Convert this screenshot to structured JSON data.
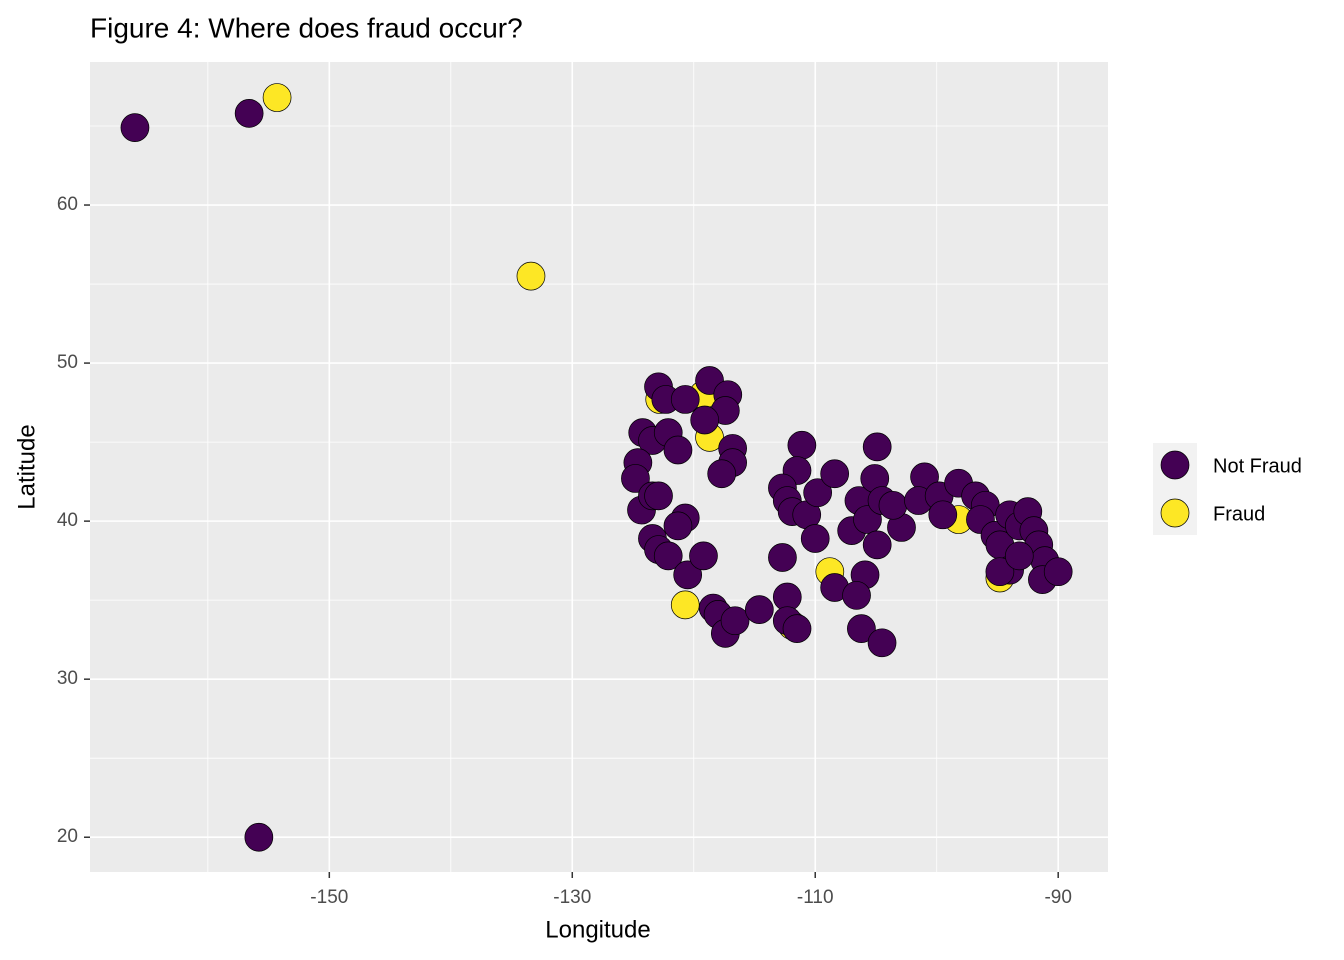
{
  "chart_data": {
    "type": "scatter",
    "title": "Figure 4: Where does fraud occur?",
    "x_label": "Longitude",
    "y_label": "Latitude",
    "xlim": [
      -169.7,
      -85.9
    ],
    "ylim": [
      17.8,
      69.05
    ],
    "xticks": [
      -150,
      -130,
      -110,
      -90
    ],
    "yticks": [
      20,
      30,
      40,
      50,
      60
    ],
    "x_minor_ticks": [
      -160,
      -140,
      -120,
      -100
    ],
    "y_minor_ticks": [
      25,
      35,
      45,
      55,
      65
    ],
    "grid": true,
    "series": [
      {
        "name": "Fraud",
        "color": "#fde725",
        "x": [
          -154.3,
          -133.4,
          -120.7,
          -108.8,
          -119.2,
          -122.8,
          -118.7,
          -98.2,
          -94.8,
          -111.9
        ],
        "y": [
          66.8,
          55.5,
          34.7,
          36.8,
          48.0,
          47.7,
          45.3,
          40.1,
          36.4,
          33.4
        ]
      },
      {
        "name": "Not Fraud",
        "color": "#440154",
        "x": [
          -166.0,
          -156.6,
          -155.8,
          -122.9,
          -122.3,
          -118.7,
          -117.2,
          -117.4,
          -120.7,
          -124.2,
          -123.4,
          -122.1,
          -121.3,
          -119.1,
          -116.8,
          -116.8,
          -117.7,
          -124.6,
          -124.8,
          -124.3,
          -123.4,
          -122.9,
          -120.7,
          -121.3,
          -123.4,
          -122.9,
          -122.1,
          -120.5,
          -119.2,
          -118.4,
          -118.0,
          -117.4,
          -116.6,
          -114.6,
          -112.7,
          -112.3,
          -112.3,
          -111.5,
          -111.1,
          -111.5,
          -112.7,
          -112.3,
          -111.9,
          -110.7,
          -109.8,
          -110.0,
          -108.4,
          -108.4,
          -106.4,
          -107.0,
          -105.7,
          -104.9,
          -105.1,
          -104.5,
          -104.9,
          -105.9,
          -106.6,
          -106.2,
          -104.5,
          -102.9,
          -103.6,
          -101.0,
          -101.5,
          -99.8,
          -99.5,
          -98.2,
          -96.8,
          -96.0,
          -96.4,
          -95.2,
          -94.8,
          -94.0,
          -93.2,
          -92.5,
          -92.0,
          -91.6,
          -91.1,
          -91.3,
          -90.0,
          -94.0,
          -94.8,
          -93.2
        ],
        "y": [
          64.9,
          65.8,
          20.0,
          48.5,
          47.7,
          48.9,
          48.0,
          47.0,
          47.7,
          45.6,
          45.1,
          45.6,
          44.5,
          46.4,
          44.6,
          43.7,
          43.0,
          43.7,
          42.7,
          40.7,
          41.6,
          41.6,
          40.2,
          39.7,
          38.9,
          38.2,
          37.8,
          36.6,
          37.8,
          34.5,
          34.1,
          32.9,
          33.7,
          34.4,
          37.7,
          35.2,
          33.7,
          33.2,
          44.8,
          43.2,
          42.1,
          41.3,
          40.6,
          40.4,
          41.8,
          38.9,
          43.0,
          35.8,
          41.3,
          39.4,
          40.1,
          44.7,
          42.7,
          41.3,
          38.5,
          36.6,
          35.3,
          33.2,
          32.3,
          39.6,
          41.0,
          42.8,
          41.3,
          41.6,
          40.4,
          42.4,
          41.6,
          41.0,
          40.1,
          39.1,
          38.5,
          40.4,
          39.7,
          40.6,
          39.4,
          38.5,
          37.5,
          36.3,
          36.8,
          36.9,
          36.8,
          37.8
        ]
      }
    ],
    "legend_order": [
      1,
      0
    ]
  }
}
